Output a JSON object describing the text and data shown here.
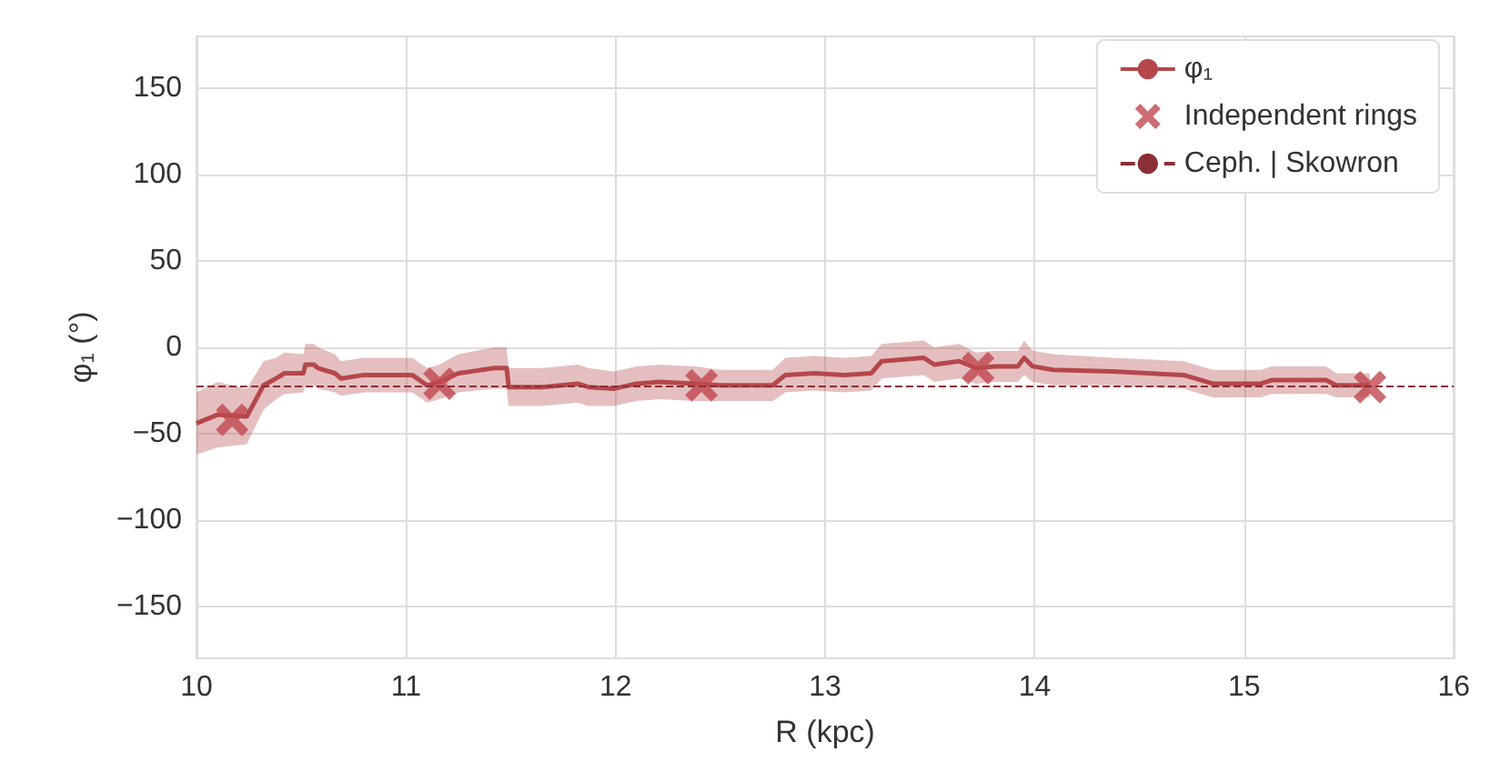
{
  "chart_data": {
    "type": "line",
    "xlabel": "R (kpc)",
    "ylabel": "φ₁ (°)",
    "xlim": [
      10,
      16
    ],
    "xticks": [
      10,
      11,
      12,
      13,
      14,
      15,
      16
    ],
    "ylim": [
      -180,
      180
    ],
    "yticks": [
      -150,
      -100,
      -50,
      0,
      50,
      100,
      150
    ],
    "grid": true,
    "legend": "top right",
    "series": [
      {
        "name": "φ₁",
        "color": "#b5474b",
        "marker": "none",
        "line_style": "solid",
        "x": [
          10.0,
          10.1,
          10.24,
          10.32,
          10.38,
          10.42,
          10.51,
          10.52,
          10.56,
          10.58,
          10.66,
          10.69,
          10.8,
          11.03,
          11.1,
          11.16,
          11.25,
          11.42,
          11.48,
          11.49,
          11.65,
          11.82,
          11.87,
          11.99,
          12.1,
          12.21,
          12.38,
          12.5,
          12.75,
          12.81,
          12.95,
          13.09,
          13.22,
          13.27,
          13.47,
          13.52,
          13.64,
          13.72,
          13.81,
          13.92,
          13.95,
          13.99,
          14.09,
          14.37,
          14.71,
          14.85,
          15.08,
          15.13,
          15.39,
          15.44,
          15.6
        ],
        "values": [
          -44,
          -39,
          -40,
          -22,
          -18,
          -15,
          -15,
          -10,
          -10,
          -12,
          -15,
          -18,
          -16,
          -16,
          -22,
          -20,
          -15,
          -12,
          -12,
          -23,
          -23,
          -21,
          -23,
          -24,
          -21,
          -20,
          -21,
          -22,
          -22,
          -16,
          -15,
          -16,
          -15,
          -8,
          -6,
          -10,
          -8,
          -12,
          -11,
          -11,
          -6,
          -11,
          -13,
          -14,
          -16,
          -21,
          -21,
          -19,
          -19,
          -22,
          -22
        ],
        "lower": [
          -62,
          -58,
          -56,
          -36,
          -30,
          -27,
          -26,
          -22,
          -22,
          -24,
          -26,
          -28,
          -26,
          -26,
          -32,
          -30,
          -26,
          -24,
          -24,
          -34,
          -34,
          -32,
          -34,
          -34,
          -31,
          -30,
          -31,
          -31,
          -31,
          -26,
          -25,
          -26,
          -25,
          -18,
          -16,
          -20,
          -18,
          -21,
          -20,
          -20,
          -16,
          -20,
          -22,
          -22,
          -24,
          -29,
          -29,
          -27,
          -27,
          -29,
          -29
        ],
        "upper": [
          -26,
          -20,
          -24,
          -8,
          -6,
          -3,
          -4,
          2,
          2,
          0,
          -4,
          -8,
          -6,
          -6,
          -12,
          -10,
          -4,
          0,
          0,
          -12,
          -12,
          -10,
          -12,
          -14,
          -11,
          -10,
          -11,
          -13,
          -13,
          -6,
          -5,
          -6,
          -5,
          2,
          4,
          0,
          2,
          -3,
          -2,
          -2,
          4,
          -2,
          -4,
          -6,
          -8,
          -13,
          -13,
          -11,
          -11,
          -15,
          -15
        ]
      },
      {
        "name": "Independent rings",
        "type": "scatter",
        "color": "#c0474f",
        "marker": "cross",
        "x": [
          10.17,
          11.16,
          12.41,
          13.73,
          15.6
        ],
        "values": [
          -42,
          -21,
          -22,
          -12,
          -23
        ]
      }
    ],
    "ref_lines": [
      {
        "axis": "y",
        "value": -22,
        "label": "Ceph. | Skowron",
        "color": "#8b2f36",
        "line_style": "dashed"
      }
    ]
  }
}
